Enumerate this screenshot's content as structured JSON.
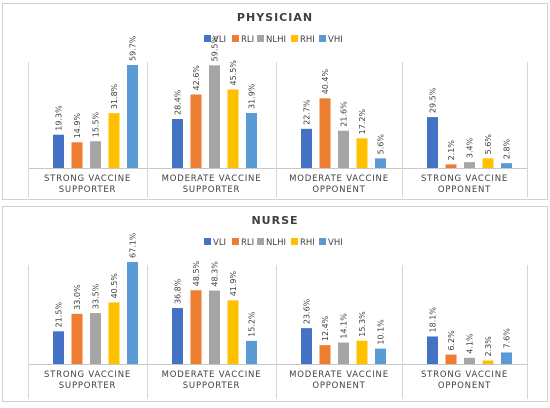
{
  "chart_data": [
    {
      "type": "bar",
      "title": "PHYSICIAN",
      "categories": [
        "Strong vaccine\nsupporter",
        "Moderate vaccine\nsupporter",
        "Moderate vaccine\nopponent",
        "Strong vaccine\nopponent"
      ],
      "series": [
        {
          "name": "VLI",
          "color": "#4472C4",
          "values": [
            19.3,
            28.4,
            22.7,
            29.5
          ]
        },
        {
          "name": "RLI",
          "color": "#ED7D31",
          "values": [
            14.9,
            42.6,
            40.4,
            2.1
          ]
        },
        {
          "name": "NLHI",
          "color": "#A5A5A5",
          "values": [
            15.5,
            59.5,
            21.6,
            3.4
          ]
        },
        {
          "name": "RHI",
          "color": "#FFC000",
          "values": [
            31.8,
            45.5,
            17.2,
            5.6
          ]
        },
        {
          "name": "VHI",
          "color": "#5B9BD5",
          "values": [
            59.7,
            31.9,
            5.6,
            2.8
          ]
        }
      ],
      "data_labels": [
        [
          "19.3%",
          "14.9%",
          "15.5%",
          "31.8%",
          "59.7%"
        ],
        [
          "28.4%",
          "42.6%",
          "59.5%",
          "45.5%",
          "31.9%"
        ],
        [
          "22.7%",
          "40.4%",
          "21.6%",
          "17.2%",
          "5.6%"
        ],
        [
          "29.5%",
          "2.1%",
          "3.4%",
          "5.6%",
          "2.8%"
        ]
      ],
      "legend": "top-center",
      "grid": false
    },
    {
      "type": "bar",
      "title": "NURSE",
      "categories": [
        "Strong vaccine\nsupporter",
        "Moderate vaccine\nsupporter",
        "Moderate vaccine\nopponent",
        "Strong vaccine\nopponent"
      ],
      "series": [
        {
          "name": "VLI",
          "color": "#4472C4",
          "values": [
            21.5,
            36.8,
            23.6,
            18.1
          ]
        },
        {
          "name": "RLI",
          "color": "#ED7D31",
          "values": [
            33.0,
            48.5,
            12.4,
            6.2
          ]
        },
        {
          "name": "NLHI",
          "color": "#A5A5A5",
          "values": [
            33.5,
            48.3,
            14.1,
            4.1
          ]
        },
        {
          "name": "RHI",
          "color": "#FFC000",
          "values": [
            40.5,
            41.9,
            15.3,
            2.3
          ]
        },
        {
          "name": "VHI",
          "color": "#5B9BD5",
          "values": [
            67.1,
            15.2,
            10.1,
            7.6
          ]
        }
      ],
      "data_labels": [
        [
          "21.5%",
          "33.0%",
          "33.5%",
          "40.5%",
          "67.1%"
        ],
        [
          "36.8%",
          "48.5%",
          "48.3%",
          "41.9%",
          "15.2%"
        ],
        [
          "23.6%",
          "12.4%",
          "14.1%",
          "15.3%",
          "10.1%"
        ],
        [
          "18.1%",
          "6.2%",
          "4.1%",
          "2.3%",
          "7.6%"
        ]
      ],
      "legend": "top-center",
      "grid": false
    }
  ]
}
